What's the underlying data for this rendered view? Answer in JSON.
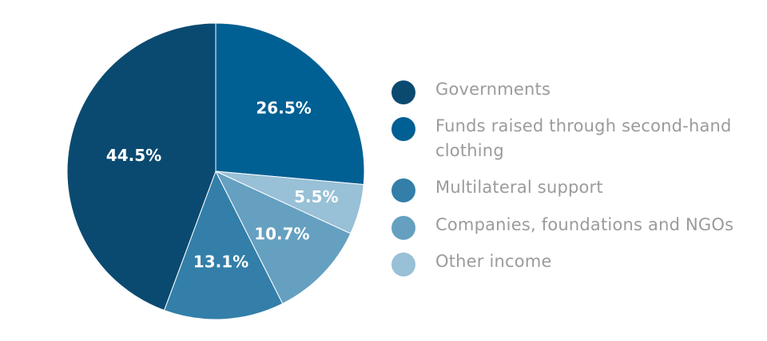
{
  "chart_data": {
    "type": "pie",
    "title": "",
    "slices": [
      {
        "label": "Governments",
        "value": 44.5,
        "display": "44.5%",
        "color": "#0b4a70",
        "label_color": "#ffffff"
      },
      {
        "label": "Funds raised through second-hand clothing",
        "value": 26.5,
        "display": "26.5%",
        "color": "#005f93",
        "label_color": "#ffffff"
      },
      {
        "label": "Multilateral support",
        "value": 13.1,
        "display": "13.1%",
        "color": "#337fa9",
        "label_color": "#ffffff"
      },
      {
        "label": "Companies, foundations and NGOs",
        "value": 10.7,
        "display": "10.7%",
        "color": "#65a0c1",
        "label_color": "#ffffff"
      },
      {
        "label": "Other income",
        "value": 5.5,
        "display": "5.5%",
        "color": "#98c0d6",
        "label_color": "#ffffff"
      }
    ],
    "start_angle_deg": 0,
    "direction": "clockwise",
    "slice_order_clockwise": [
      "Funds raised through second-hand clothing",
      "Other income",
      "Companies, foundations and NGOs",
      "Multilateral support",
      "Governments"
    ],
    "legend_placement": "right"
  },
  "legend": {
    "items": [
      {
        "label": "Governments",
        "color": "#0b4a70"
      },
      {
        "label": "Funds raised through second-hand clothing",
        "color": "#005f93"
      },
      {
        "label": "Multilateral support",
        "color": "#337fa9"
      },
      {
        "label": "Companies, foundations and NGOs",
        "color": "#65a0c1"
      },
      {
        "label": "Other income",
        "color": "#98c0d6"
      }
    ]
  }
}
